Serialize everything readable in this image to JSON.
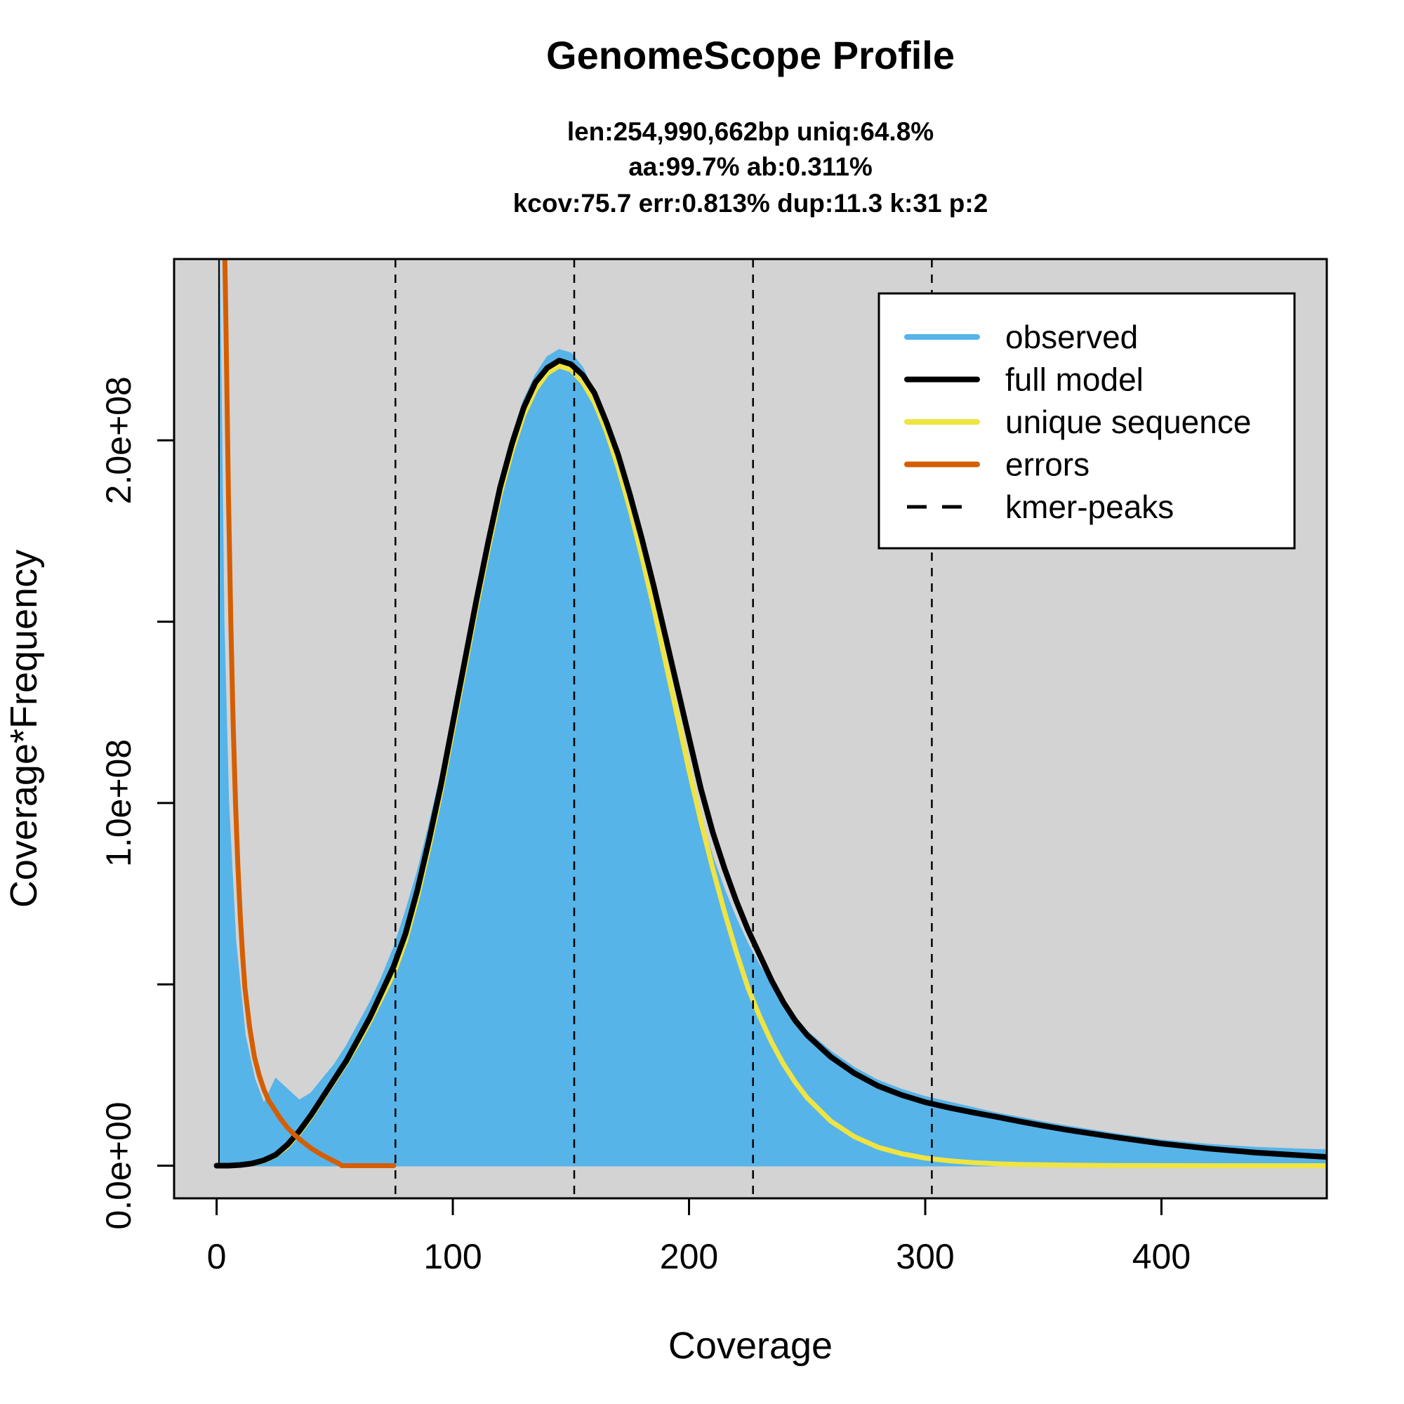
{
  "chart_data": {
    "type": "area",
    "title": "GenomeScope Profile",
    "subtitle_lines": [
      "len:254,990,662bp uniq:64.8%",
      "aa:99.7% ab:0.311%",
      "kcov:75.7 err:0.813%  dup:11.3  k:31 p:2"
    ],
    "xlabel": "Coverage",
    "ylabel": "Coverage*Frequency",
    "xlim": [
      -18,
      470
    ],
    "ylim": [
      -9000000,
      250000000
    ],
    "x_ticks": [
      0,
      100,
      200,
      300,
      400
    ],
    "x_tick_labels": [
      "0",
      "100",
      "200",
      "300",
      "400"
    ],
    "y_ticks": [
      0,
      50000000,
      100000000,
      150000000,
      200000000
    ],
    "y_tick_labels": [
      "0.0e+00",
      "",
      "1.0e+08",
      "",
      "2.0e+08"
    ],
    "kmer_peaks": [
      75.7,
      151.4,
      227.1,
      302.8
    ],
    "legend": {
      "position": "top-right",
      "entries": [
        {
          "label": "observed",
          "color": "#56B4E9",
          "style": "solid"
        },
        {
          "label": "full model",
          "color": "#000000",
          "style": "solid"
        },
        {
          "label": "unique sequence",
          "color": "#F0E442",
          "style": "solid"
        },
        {
          "label": "errors",
          "color": "#D55E00",
          "style": "solid"
        },
        {
          "label": "kmer-peaks",
          "color": "#000000",
          "style": "dashed"
        }
      ]
    },
    "colors": {
      "plot_background": "#D3D3D3",
      "observed": "#56B4E9",
      "full_model": "#000000",
      "unique_sequence": "#F0E442",
      "errors": "#D55E00"
    },
    "series": [
      {
        "name": "observed",
        "x": [
          1,
          3,
          5,
          8,
          12,
          16,
          20,
          25,
          30,
          35,
          40,
          45,
          50,
          55,
          60,
          65,
          70,
          75,
          80,
          85,
          90,
          95,
          100,
          105,
          110,
          115,
          120,
          125,
          130,
          135,
          140,
          145,
          150,
          155,
          160,
          165,
          170,
          175,
          180,
          185,
          190,
          195,
          200,
          205,
          210,
          215,
          220,
          225,
          230,
          235,
          240,
          245,
          250,
          260,
          270,
          280,
          290,
          300,
          310,
          320,
          330,
          340,
          350,
          360,
          380,
          400,
          420,
          440,
          460,
          470
        ],
        "values": [
          260000000,
          150000000,
          100000000,
          62000000,
          36000000,
          24000000,
          17000000,
          24000000,
          21000000,
          18000000,
          20000000,
          24000000,
          28000000,
          33000000,
          39000000,
          45000000,
          52000000,
          60000000,
          70000000,
          81000000,
          94000000,
          108000000,
          124000000,
          140000000,
          157000000,
          173000000,
          188000000,
          201000000,
          211000000,
          218000000,
          223000000,
          225000000,
          224000000,
          220000000,
          213000000,
          204000000,
          193000000,
          180000000,
          166000000,
          151000000,
          136000000,
          122000000,
          108000000,
          96000000,
          85000000,
          76000000,
          68000000,
          61000000,
          55000000,
          50000000,
          45000000,
          41000000,
          37000000,
          31500000,
          27000000,
          23500000,
          21000000,
          19000000,
          17500000,
          16000000,
          14500000,
          13300000,
          12000000,
          10900000,
          8800000,
          7000000,
          5800000,
          5000000,
          4500000,
          4300000
        ]
      },
      {
        "name": "full model",
        "x": [
          0,
          5,
          10,
          15,
          20,
          25,
          30,
          35,
          40,
          45,
          50,
          55,
          60,
          65,
          70,
          75,
          80,
          85,
          90,
          95,
          100,
          105,
          110,
          115,
          120,
          125,
          130,
          135,
          140,
          145,
          150,
          155,
          160,
          165,
          170,
          175,
          180,
          185,
          190,
          195,
          200,
          205,
          210,
          215,
          220,
          225,
          230,
          235,
          240,
          245,
          250,
          260,
          270,
          280,
          290,
          300,
          310,
          320,
          330,
          340,
          350,
          360,
          380,
          400,
          420,
          440,
          460,
          470
        ],
        "values": [
          0,
          0,
          200000,
          600000,
          1500000,
          3000000,
          5800000,
          9500000,
          14000000,
          19000000,
          24000000,
          29000000,
          35000000,
          41000000,
          48000000,
          55000000,
          64000000,
          76000000,
          90000000,
          105000000,
          122000000,
          139000000,
          156000000,
          172000000,
          187000000,
          199000000,
          209000000,
          216000000,
          220000000,
          222000000,
          221000000,
          218000000,
          213000000,
          205000000,
          196000000,
          185000000,
          173000000,
          160000000,
          146000000,
          132000000,
          118000000,
          104000000,
          92000000,
          82000000,
          73000000,
          65000000,
          58000000,
          51000000,
          45000000,
          40000000,
          36000000,
          30000000,
          25500000,
          22000000,
          19500000,
          17500000,
          16000000,
          14700000,
          13500000,
          12200000,
          11000000,
          9900000,
          7900000,
          6100000,
          4700000,
          3600000,
          2800000,
          2400000
        ]
      },
      {
        "name": "unique sequence",
        "x": [
          0,
          5,
          10,
          15,
          20,
          25,
          30,
          35,
          40,
          45,
          50,
          55,
          60,
          65,
          70,
          75,
          80,
          85,
          90,
          95,
          100,
          105,
          110,
          115,
          120,
          125,
          130,
          135,
          140,
          145,
          150,
          155,
          160,
          165,
          170,
          175,
          180,
          185,
          190,
          195,
          200,
          205,
          210,
          215,
          220,
          225,
          230,
          235,
          240,
          245,
          250,
          260,
          270,
          280,
          290,
          300,
          310,
          320,
          330,
          340,
          360,
          380,
          400,
          420,
          440,
          470
        ],
        "values": [
          0,
          0,
          150000,
          500000,
          1300000,
          2800000,
          5300000,
          9000000,
          13500000,
          18500000,
          23500000,
          28500000,
          34000000,
          40000000,
          46500000,
          53000000,
          62000000,
          74000000,
          88000000,
          103000000,
          120000000,
          137000000,
          154000000,
          170000000,
          185000000,
          197000000,
          207000000,
          214000000,
          218500000,
          220500000,
          219500000,
          216000000,
          210500000,
          202500000,
          192500000,
          181000000,
          168000000,
          154000000,
          139000000,
          124000000,
          109000000,
          95000000,
          82000000,
          70000000,
          59000000,
          49000000,
          41000000,
          34000000,
          28000000,
          23000000,
          18700000,
          12300000,
          8000000,
          5100000,
          3300000,
          2100000,
          1350000,
          850000,
          550000,
          350000,
          150000,
          60000,
          20000,
          0,
          0,
          0
        ]
      },
      {
        "name": "errors",
        "x": [
          3.5,
          4,
          5,
          6,
          7,
          8,
          9,
          10,
          11,
          12,
          14,
          16,
          18,
          20,
          22,
          24,
          27,
          30,
          33,
          36,
          40,
          44,
          48,
          52,
          53,
          60,
          70,
          75
        ],
        "values": [
          250000000,
          230000000,
          185000000,
          150000000,
          122000000,
          100000000,
          83000000,
          69000000,
          58000000,
          49000000,
          38000000,
          30000000,
          25000000,
          21000000,
          18000000,
          16000000,
          13000000,
          10500000,
          8500000,
          6800000,
          4800000,
          3200000,
          1800000,
          500000,
          0,
          0,
          0,
          0
        ]
      }
    ]
  }
}
